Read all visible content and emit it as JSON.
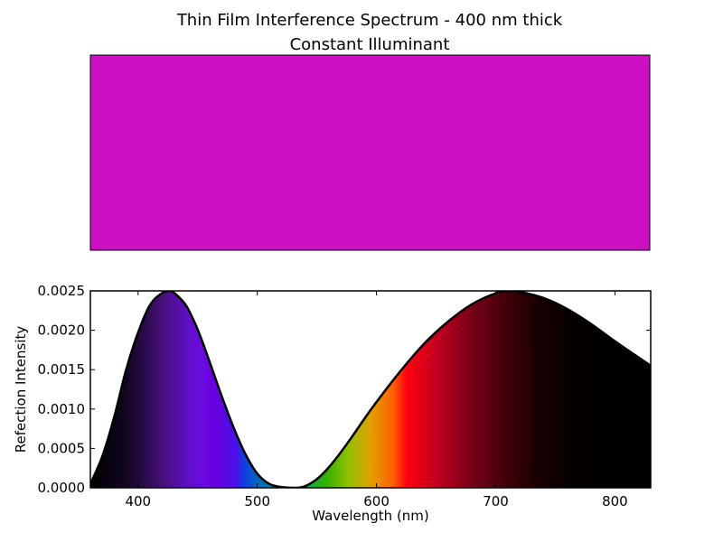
{
  "figure": {
    "title_line1": "Thin Film Interference Spectrum - 400 nm thick",
    "title_line2": "Constant Illuminant"
  },
  "swatch": {
    "color": "#cc10c2"
  },
  "chart_data": {
    "type": "area",
    "xlabel": "Wavelength (nm)",
    "ylabel": "Refection Intensity",
    "xlim": [
      360,
      830
    ],
    "ylim": [
      0,
      0.0025
    ],
    "xticks": [
      400,
      500,
      600,
      700,
      800
    ],
    "xtick_labels": [
      "400",
      "500",
      "600",
      "700",
      "800"
    ],
    "yticks": [
      0,
      0.0005,
      0.001,
      0.0015,
      0.002,
      0.0025
    ],
    "ytick_labels": [
      "0.0000",
      "0.0005",
      "0.0010",
      "0.0015",
      "0.0020",
      "0.0025"
    ],
    "grid": false,
    "fill": "spectral colors",
    "x": [
      360,
      370,
      380,
      390,
      400,
      410,
      420,
      427,
      430,
      440,
      450,
      460,
      470,
      480,
      490,
      500,
      510,
      520,
      532,
      540,
      550,
      560,
      570,
      580,
      590,
      600,
      620,
      640,
      660,
      680,
      700,
      712,
      720,
      740,
      760,
      780,
      800,
      830
    ],
    "values": [
      5e-05,
      0.0004,
      0.0009,
      0.0015,
      0.00197,
      0.00232,
      0.00247,
      0.0025,
      0.00248,
      0.00232,
      0.00201,
      0.0016,
      0.00117,
      0.00077,
      0.00043,
      0.00018,
      5e-05,
      1e-05,
      0.0,
      2e-05,
      0.00011,
      0.00026,
      0.00045,
      0.00066,
      0.00088,
      0.00109,
      0.00148,
      0.00183,
      0.00211,
      0.00233,
      0.00247,
      0.0025,
      0.00249,
      0.00241,
      0.00227,
      0.00208,
      0.00186,
      0.00155
    ]
  }
}
